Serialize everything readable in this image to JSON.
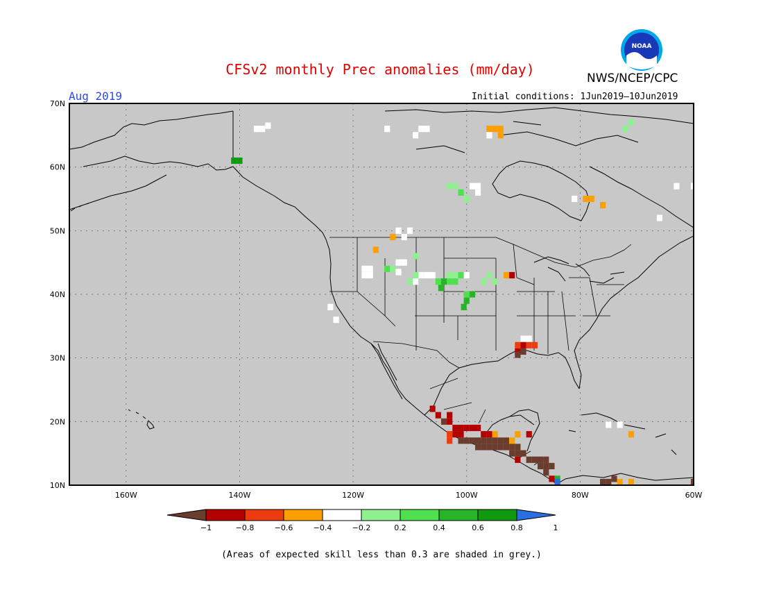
{
  "title": "CFSv2 monthly Prec anomalies (mm/day)",
  "agency": "NWS/NCEP/CPC",
  "logo_text": "NOAA",
  "period": "Aug 2019",
  "initial_conditions": "Initial conditions: 1Jun2019–10Jun2019",
  "footnote": "(Areas of expected skill less than 0.3 are shaded in grey.)",
  "map": {
    "lon_range": [
      -170,
      -60
    ],
    "lat_range": [
      10,
      70
    ],
    "lon_ticks": [
      "160W",
      "140W",
      "120W",
      "100W",
      "80W",
      "60W"
    ],
    "lat_ticks": [
      "10N",
      "20N",
      "30N",
      "40N",
      "50N",
      "60N",
      "70N"
    ],
    "background_color": "#c8c8c8",
    "grid": true
  },
  "colorbar": {
    "labels": [
      "−1",
      "−0.8",
      "−0.6",
      "−0.4",
      "−0.2",
      "0.2",
      "0.4",
      "0.6",
      "0.8",
      "1"
    ],
    "colors": [
      "#6b3d2e",
      "#b50000",
      "#ee3b0f",
      "#fba000",
      "#ffffff",
      "#8ff08f",
      "#4ee04e",
      "#28b428",
      "#0f9a0f",
      "#2a6fe0"
    ]
  }
}
